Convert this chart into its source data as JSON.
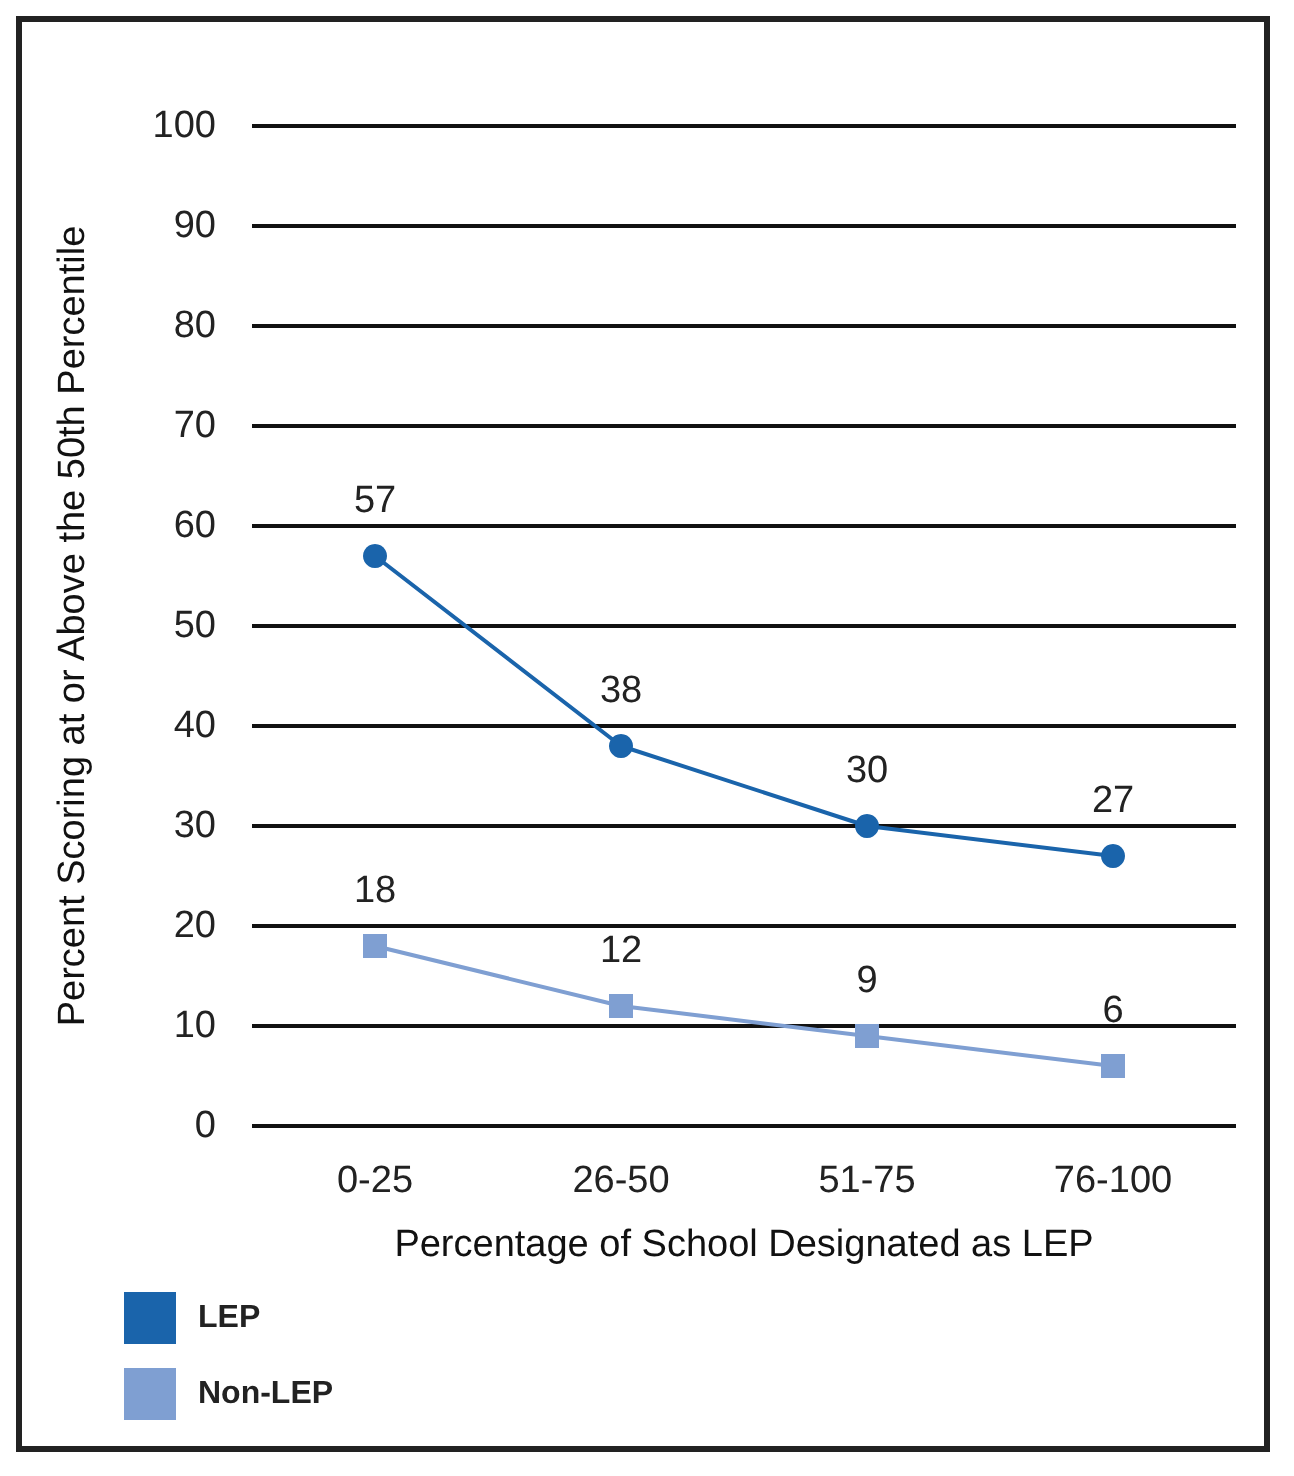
{
  "chart_data": {
    "type": "line",
    "xlabel": "Percentage of School Designated as LEP",
    "ylabel": "Percent Scoring at or Above the 50th Percentile",
    "categories": [
      "0-25",
      "26-50",
      "51-75",
      "76-100"
    ],
    "series": [
      {
        "name": "LEP",
        "color": "#1a64ab",
        "marker": "circle",
        "values": [
          57,
          38,
          30,
          27
        ]
      },
      {
        "name": "Non-LEP",
        "color": "#7f9fd2",
        "marker": "square",
        "values": [
          18,
          12,
          9,
          6
        ]
      }
    ],
    "ylim": [
      0,
      100
    ],
    "yticks": [
      0,
      10,
      20,
      30,
      40,
      50,
      60,
      70,
      80,
      90,
      100
    ],
    "grid": "y",
    "legend": "bottom left",
    "data_labels": true
  }
}
